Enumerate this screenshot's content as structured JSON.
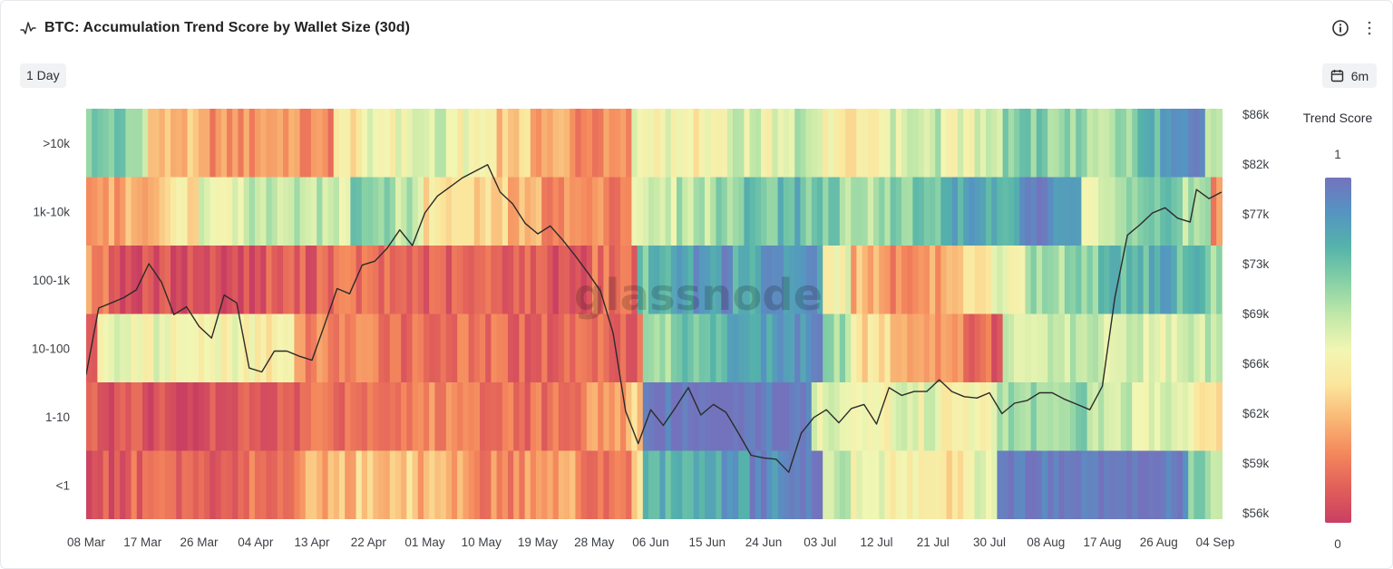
{
  "header": {
    "title": "BTC: Accumulation Trend Score by Wallet Size (30d)",
    "range_label": "1 Day",
    "period_label": "6m",
    "watermark": "glassnode"
  },
  "icons": {
    "title": "line-chart-icon",
    "info": "info-icon",
    "more": "more-vertical-icon",
    "period": "calendar-icon"
  },
  "chart_data": {
    "type": "heatmap",
    "title": "BTC: Accumulation Trend Score by Wallet Size (30d)",
    "x_tick_labels": [
      "08 Mar",
      "17 Mar",
      "26 Mar",
      "04 Apr",
      "13 Apr",
      "22 Apr",
      "01 May",
      "10 May",
      "19 May",
      "28 May",
      "06 Jun",
      "15 Jun",
      "24 Jun",
      "03 Jul",
      "12 Jul",
      "21 Jul",
      "30 Jul",
      "08 Aug",
      "17 Aug",
      "26 Aug",
      "04 Sep"
    ],
    "y_categories": [
      ">10k",
      "1k-10k",
      "100-1k",
      "10-100",
      "1-10",
      "<1"
    ],
    "price_axis_ticks": [
      "$86k",
      "$82k",
      "$77k",
      "$73k",
      "$69k",
      "$66k",
      "$62k",
      "$59k",
      "$56k"
    ],
    "price_range": [
      55,
      86.5
    ],
    "colorbar": {
      "title": "Trend Score",
      "max_label": "1",
      "min_label": "0",
      "range": [
        0,
        1
      ]
    },
    "colorscale": [
      "#c93f62",
      "#e15f5a",
      "#f4875c",
      "#f9b775",
      "#fbe59c",
      "#f2f6b3",
      "#c2e8a8",
      "#86d0a6",
      "#55b3aa",
      "#5594c2",
      "#7373bd"
    ],
    "row_segments": {
      ">10k": [
        [
          "08 Mar",
          0.72
        ],
        [
          "14 Mar",
          0.65
        ],
        [
          "18 Mar",
          0.3
        ],
        [
          "26 Mar",
          0.22
        ],
        [
          "04 Apr",
          0.27
        ],
        [
          "10 Apr",
          0.2
        ],
        [
          "16 Apr",
          0.42
        ],
        [
          "22 Apr",
          0.5
        ],
        [
          "28 Apr",
          0.55
        ],
        [
          "05 May",
          0.47
        ],
        [
          "12 May",
          0.35
        ],
        [
          "18 May",
          0.28
        ],
        [
          "24 May",
          0.2
        ],
        [
          "03 Jun",
          0.5
        ],
        [
          "10 Jun",
          0.45
        ],
        [
          "18 Jun",
          0.55
        ],
        [
          "24 Jun",
          0.5
        ],
        [
          "29 Jun",
          0.62
        ],
        [
          "03 Jul",
          0.45
        ],
        [
          "12 Jul",
          0.55
        ],
        [
          "16 Jul",
          0.6
        ],
        [
          "22 Jul",
          0.5
        ],
        [
          "28 Jul",
          0.6
        ],
        [
          "01 Aug",
          0.7
        ],
        [
          "08 Aug",
          0.68
        ],
        [
          "14 Aug",
          0.62
        ],
        [
          "18 Aug",
          0.66
        ],
        [
          "23 Aug",
          0.8
        ],
        [
          "26 Aug",
          0.85
        ],
        [
          "31 Aug",
          0.92
        ],
        [
          "02 Sep",
          0.6
        ],
        [
          "05 Sep",
          0.55
        ]
      ],
      "1k-10k": [
        [
          "08 Mar",
          0.25
        ],
        [
          "14 Mar",
          0.3
        ],
        [
          "20 Mar",
          0.42
        ],
        [
          "26 Mar",
          0.55
        ],
        [
          "03 Apr",
          0.62
        ],
        [
          "09 Apr",
          0.6
        ],
        [
          "15 Apr",
          0.55
        ],
        [
          "19 Apr",
          0.72
        ],
        [
          "25 Apr",
          0.6
        ],
        [
          "01 May",
          0.4
        ],
        [
          "07 May",
          0.35
        ],
        [
          "14 May",
          0.28
        ],
        [
          "20 May",
          0.22
        ],
        [
          "26 May",
          0.2
        ],
        [
          "03 Jun",
          0.55
        ],
        [
          "10 Jun",
          0.62
        ],
        [
          "16 Jun",
          0.68
        ],
        [
          "21 Jun",
          0.75
        ],
        [
          "26 Jun",
          0.8
        ],
        [
          "01 Jul",
          0.72
        ],
        [
          "06 Jul",
          0.62
        ],
        [
          "12 Jul",
          0.68
        ],
        [
          "18 Jul",
          0.75
        ],
        [
          "24 Jul",
          0.82
        ],
        [
          "30 Jul",
          0.85
        ],
        [
          "04 Aug",
          0.98
        ],
        [
          "08 Aug",
          0.85
        ],
        [
          "14 Aug",
          0.55
        ],
        [
          "19 Aug",
          0.65
        ],
        [
          "24 Aug",
          0.75
        ],
        [
          "30 Aug",
          0.62
        ],
        [
          "03 Sep",
          0.22
        ]
      ],
      "100-1k": [
        [
          "08 Mar",
          0.22
        ],
        [
          "12 Mar",
          0.05
        ],
        [
          "20 Mar",
          0.06
        ],
        [
          "28 Mar",
          0.05
        ],
        [
          "06 Apr",
          0.1
        ],
        [
          "14 Apr",
          0.15
        ],
        [
          "22 Apr",
          0.12
        ],
        [
          "01 May",
          0.1
        ],
        [
          "10 May",
          0.12
        ],
        [
          "19 May",
          0.08
        ],
        [
          "28 May",
          0.15
        ],
        [
          "04 Jun",
          0.75
        ],
        [
          "08 Jun",
          0.82
        ],
        [
          "13 Jun",
          0.9
        ],
        [
          "19 Jun",
          0.8
        ],
        [
          "24 Jun",
          0.88
        ],
        [
          "29 Jun",
          0.9
        ],
        [
          "03 Jul",
          0.5
        ],
        [
          "08 Jul",
          0.3
        ],
        [
          "14 Jul",
          0.2
        ],
        [
          "20 Jul",
          0.25
        ],
        [
          "26 Jul",
          0.35
        ],
        [
          "30 Jul",
          0.5
        ],
        [
          "05 Aug",
          0.65
        ],
        [
          "12 Aug",
          0.72
        ],
        [
          "18 Aug",
          0.78
        ],
        [
          "24 Aug",
          0.85
        ],
        [
          "29 Aug",
          0.75
        ],
        [
          "02 Sep",
          0.65
        ]
      ],
      "10-100": [
        [
          "08 Mar",
          0.1
        ],
        [
          "10 Mar",
          0.5
        ],
        [
          "20 Mar",
          0.48
        ],
        [
          "01 Apr",
          0.45
        ],
        [
          "10 Apr",
          0.2
        ],
        [
          "18 Apr",
          0.18
        ],
        [
          "27 Apr",
          0.15
        ],
        [
          "06 May",
          0.14
        ],
        [
          "15 May",
          0.12
        ],
        [
          "24 May",
          0.15
        ],
        [
          "02 Jun",
          0.12
        ],
        [
          "05 Jun",
          0.65
        ],
        [
          "10 Jun",
          0.75
        ],
        [
          "15 Jun",
          0.8
        ],
        [
          "21 Jun",
          0.85
        ],
        [
          "26 Jun",
          0.9
        ],
        [
          "03 Jul",
          0.65
        ],
        [
          "08 Jul",
          0.4
        ],
        [
          "14 Jul",
          0.3
        ],
        [
          "20 Jul",
          0.25
        ],
        [
          "26 Jul",
          0.15
        ],
        [
          "30 Jul",
          0.05
        ],
        [
          "01 Aug",
          0.56
        ],
        [
          "10 Aug",
          0.58
        ],
        [
          "18 Aug",
          0.57
        ],
        [
          "26 Aug",
          0.55
        ],
        [
          "02 Sep",
          0.58
        ]
      ],
      "1-10": [
        [
          "08 Mar",
          0.08
        ],
        [
          "15 Mar",
          0.06
        ],
        [
          "24 Mar",
          0.05
        ],
        [
          "02 Apr",
          0.08
        ],
        [
          "11 Apr",
          0.15
        ],
        [
          "20 Apr",
          0.18
        ],
        [
          "29 Apr",
          0.2
        ],
        [
          "08 May",
          0.18
        ],
        [
          "17 May",
          0.15
        ],
        [
          "26 May",
          0.25
        ],
        [
          "03 Jun",
          0.35
        ],
        [
          "05 Jun",
          1.0
        ],
        [
          "14 Jun",
          1.0
        ],
        [
          "22 Jun",
          1.0
        ],
        [
          "02 Jul",
          0.55
        ],
        [
          "10 Jul",
          0.5
        ],
        [
          "16 Jul",
          0.52
        ],
        [
          "22 Jul",
          0.48
        ],
        [
          "28 Jul",
          0.5
        ],
        [
          "31 Jul",
          0.65
        ],
        [
          "08 Aug",
          0.7
        ],
        [
          "15 Aug",
          0.6
        ],
        [
          "20 Aug",
          0.56
        ],
        [
          "26 Aug",
          0.55
        ],
        [
          "01 Sep",
          0.45
        ],
        [
          "04 Sep",
          0.35
        ]
      ],
      "<1": [
        [
          "08 Mar",
          0.08
        ],
        [
          "15 Mar",
          0.12
        ],
        [
          "24 Mar",
          0.1
        ],
        [
          "02 Apr",
          0.15
        ],
        [
          "11 Apr",
          0.3
        ],
        [
          "20 Apr",
          0.35
        ],
        [
          "29 Apr",
          0.3
        ],
        [
          "08 May",
          0.2
        ],
        [
          "17 May",
          0.25
        ],
        [
          "26 May",
          0.15
        ],
        [
          "03 Jun",
          0.35
        ],
        [
          "05 Jun",
          0.8
        ],
        [
          "10 Jun",
          0.78
        ],
        [
          "16 Jun",
          0.85
        ],
        [
          "22 Jun",
          0.92
        ],
        [
          "28 Jun",
          0.95
        ],
        [
          "03 Jul",
          0.6
        ],
        [
          "08 Jul",
          0.5
        ],
        [
          "14 Jul",
          0.45
        ],
        [
          "20 Jul",
          0.4
        ],
        [
          "26 Jul",
          0.5
        ],
        [
          "31 Jul",
          1.0
        ],
        [
          "10 Aug",
          1.0
        ],
        [
          "20 Aug",
          0.98
        ],
        [
          "28 Aug",
          0.97
        ],
        [
          "31 Aug",
          0.7
        ],
        [
          "03 Sep",
          0.55
        ]
      ]
    },
    "price_series": {
      "name": "BTC Price",
      "color": "#2b2b2b",
      "points": [
        [
          "08 Mar",
          66.1
        ],
        [
          "10 Mar",
          71.2
        ],
        [
          "12 Mar",
          71.6
        ],
        [
          "14 Mar",
          72.0
        ],
        [
          "16 Mar",
          72.6
        ],
        [
          "18 Mar",
          74.6
        ],
        [
          "20 Mar",
          73.2
        ],
        [
          "22 Mar",
          70.7
        ],
        [
          "24 Mar",
          71.3
        ],
        [
          "26 Mar",
          69.8
        ],
        [
          "28 Mar",
          68.9
        ],
        [
          "30 Mar",
          72.2
        ],
        [
          "01 Apr",
          71.6
        ],
        [
          "03 Apr",
          66.6
        ],
        [
          "05 Apr",
          66.3
        ],
        [
          "07 Apr",
          67.9
        ],
        [
          "09 Apr",
          67.9
        ],
        [
          "11 Apr",
          67.5
        ],
        [
          "13 Apr",
          67.2
        ],
        [
          "15 Apr",
          69.9
        ],
        [
          "17 Apr",
          72.7
        ],
        [
          "19 Apr",
          72.3
        ],
        [
          "21 Apr",
          74.5
        ],
        [
          "23 Apr",
          74.8
        ],
        [
          "25 Apr",
          75.8
        ],
        [
          "27 Apr",
          77.2
        ],
        [
          "29 Apr",
          76.0
        ],
        [
          "01 May",
          78.5
        ],
        [
          "03 May",
          79.8
        ],
        [
          "05 May",
          80.5
        ],
        [
          "07 May",
          81.2
        ],
        [
          "09 May",
          81.7
        ],
        [
          "11 May",
          82.2
        ],
        [
          "13 May",
          80.1
        ],
        [
          "15 May",
          79.2
        ],
        [
          "17 May",
          77.7
        ],
        [
          "19 May",
          76.9
        ],
        [
          "21 May",
          77.5
        ],
        [
          "23 May",
          76.4
        ],
        [
          "25 May",
          75.2
        ],
        [
          "27 May",
          73.9
        ],
        [
          "29 May",
          72.5
        ],
        [
          "31 May",
          69.3
        ],
        [
          "02 Jun",
          63.3
        ],
        [
          "04 Jun",
          60.8
        ],
        [
          "06 Jun",
          63.4
        ],
        [
          "08 Jun",
          62.2
        ],
        [
          "10 Jun",
          63.6
        ],
        [
          "12 Jun",
          65.1
        ],
        [
          "14 Jun",
          63.0
        ],
        [
          "16 Jun",
          63.8
        ],
        [
          "18 Jun",
          63.2
        ],
        [
          "20 Jun",
          61.6
        ],
        [
          "22 Jun",
          59.9
        ],
        [
          "24 Jun",
          59.7
        ],
        [
          "26 Jun",
          59.6
        ],
        [
          "28 Jun",
          58.6
        ],
        [
          "30 Jun",
          61.6
        ],
        [
          "02 Jul",
          62.8
        ],
        [
          "04 Jul",
          63.4
        ],
        [
          "06 Jul",
          62.4
        ],
        [
          "08 Jul",
          63.5
        ],
        [
          "10 Jul",
          63.8
        ],
        [
          "12 Jul",
          62.3
        ],
        [
          "14 Jul",
          65.1
        ],
        [
          "16 Jul",
          64.5
        ],
        [
          "18 Jul",
          64.8
        ],
        [
          "20 Jul",
          64.8
        ],
        [
          "22 Jul",
          65.7
        ],
        [
          "24 Jul",
          64.8
        ],
        [
          "26 Jul",
          64.4
        ],
        [
          "28 Jul",
          64.3
        ],
        [
          "30 Jul",
          64.7
        ],
        [
          "01 Aug",
          63.1
        ],
        [
          "03 Aug",
          63.9
        ],
        [
          "05 Aug",
          64.1
        ],
        [
          "07 Aug",
          64.7
        ],
        [
          "09 Aug",
          64.7
        ],
        [
          "11 Aug",
          64.2
        ],
        [
          "13 Aug",
          63.8
        ],
        [
          "15 Aug",
          63.4
        ],
        [
          "17 Aug",
          65.2
        ],
        [
          "19 Aug",
          72.0
        ],
        [
          "21 Aug",
          76.8
        ],
        [
          "23 Aug",
          77.6
        ],
        [
          "25 Aug",
          78.5
        ],
        [
          "27 Aug",
          78.9
        ],
        [
          "29 Aug",
          78.1
        ],
        [
          "31 Aug",
          77.8
        ],
        [
          "01 Sep",
          80.3
        ],
        [
          "03 Sep",
          79.6
        ],
        [
          "05 Sep",
          80.1
        ]
      ]
    }
  }
}
